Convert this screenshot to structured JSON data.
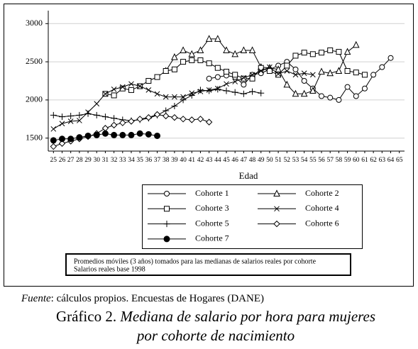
{
  "chart_data": {
    "type": "line",
    "x_label": "Edad",
    "xlim": [
      24.4,
      65.6
    ],
    "xticks": [
      25,
      26,
      27,
      28,
      29,
      30,
      31,
      32,
      33,
      34,
      35,
      36,
      37,
      38,
      39,
      40,
      41,
      42,
      43,
      44,
      45,
      46,
      47,
      48,
      49,
      50,
      51,
      52,
      53,
      54,
      55,
      56,
      57,
      58,
      59,
      60,
      61,
      62,
      63,
      64,
      65
    ],
    "ylim": [
      1330,
      3170
    ],
    "yticks": [
      1500,
      2000,
      2500,
      3000
    ],
    "grid": true,
    "series": [
      {
        "name": "Cohorte 1",
        "color": "#000000",
        "marker": "circle",
        "x": [
          43,
          44,
          45,
          46,
          47,
          48,
          49,
          50,
          51,
          52,
          53,
          54,
          55,
          56,
          57,
          58,
          59,
          60,
          61,
          62,
          63,
          64
        ],
        "values": [
          2280,
          2300,
          2320,
          2300,
          2200,
          2330,
          2350,
          2400,
          2450,
          2500,
          2400,
          2250,
          2150,
          2050,
          2030,
          2000,
          2170,
          2050,
          2150,
          2330,
          2430,
          2550
        ]
      },
      {
        "name": "Cohorte 2",
        "color": "#000000",
        "marker": "triangle",
        "x": [
          38,
          39,
          40,
          41,
          42,
          43,
          44,
          45,
          46,
          47,
          48,
          49,
          50,
          51,
          52,
          53,
          54,
          55,
          56,
          57,
          58,
          59,
          60
        ],
        "values": [
          2380,
          2560,
          2650,
          2600,
          2650,
          2800,
          2800,
          2650,
          2600,
          2650,
          2650,
          2430,
          2420,
          2400,
          2200,
          2080,
          2080,
          2120,
          2370,
          2350,
          2380,
          2630,
          2720
        ]
      },
      {
        "name": "Cohorte 3",
        "color": "#000000",
        "marker": "square",
        "x": [
          31,
          32,
          33,
          34,
          35,
          36,
          37,
          38,
          39,
          40,
          41,
          42,
          43,
          44,
          45,
          46,
          47,
          48,
          49,
          50,
          51,
          52,
          53,
          54,
          55,
          56,
          57,
          58,
          59,
          60,
          61
        ],
        "values": [
          2080,
          2060,
          2150,
          2130,
          2180,
          2250,
          2300,
          2380,
          2400,
          2500,
          2520,
          2520,
          2480,
          2420,
          2370,
          2330,
          2280,
          2280,
          2420,
          2380,
          2330,
          2450,
          2580,
          2620,
          2600,
          2620,
          2650,
          2630,
          2380,
          2360,
          2330
        ]
      },
      {
        "name": "Cohorte 4",
        "color": "#000000",
        "marker": "x",
        "x": [
          25,
          26,
          27,
          28,
          29,
          30,
          31,
          32,
          33,
          34,
          35,
          36,
          37,
          38,
          39,
          40,
          41,
          42,
          43,
          44,
          45,
          46,
          47,
          48,
          49,
          50,
          51,
          52,
          53,
          54,
          55
        ],
        "values": [
          1620,
          1690,
          1720,
          1730,
          1840,
          1950,
          2080,
          2140,
          2170,
          2210,
          2180,
          2130,
          2080,
          2040,
          2040,
          2040,
          2090,
          2110,
          2130,
          2150,
          2210,
          2240,
          2290,
          2330,
          2380,
          2430,
          2340,
          2380,
          2330,
          2350,
          2330
        ]
      },
      {
        "name": "Cohorte 5",
        "color": "#000000",
        "marker": "plus",
        "x": [
          25,
          26,
          27,
          28,
          29,
          30,
          31,
          32,
          33,
          34,
          35,
          36,
          37,
          38,
          39,
          40,
          41,
          42,
          43,
          44,
          45,
          46,
          47,
          48,
          49
        ],
        "values": [
          1800,
          1780,
          1790,
          1800,
          1820,
          1800,
          1780,
          1760,
          1740,
          1730,
          1740,
          1760,
          1800,
          1860,
          1920,
          2000,
          2060,
          2130,
          2120,
          2140,
          2120,
          2100,
          2080,
          2110,
          2090
        ]
      },
      {
        "name": "Cohorte 6",
        "color": "#000000",
        "marker": "diamond",
        "x": [
          25,
          26,
          27,
          28,
          29,
          30,
          31,
          32,
          33,
          34,
          35,
          36,
          37,
          38,
          39,
          40,
          41,
          42,
          43
        ],
        "values": [
          1390,
          1430,
          1460,
          1490,
          1520,
          1560,
          1630,
          1670,
          1700,
          1720,
          1750,
          1770,
          1810,
          1790,
          1770,
          1750,
          1740,
          1750,
          1710
        ]
      },
      {
        "name": "Cohorte 7",
        "color": "#000000",
        "marker": "filled-circle",
        "x": [
          25,
          26,
          27,
          28,
          29,
          30,
          31,
          32,
          33,
          34,
          35,
          36,
          37
        ],
        "values": [
          1470,
          1490,
          1490,
          1510,
          1530,
          1540,
          1560,
          1540,
          1540,
          1540,
          1560,
          1550,
          1530
        ]
      }
    ],
    "note": [
      "Promedios móviles (3 años) tomados para las medianas de salarios reales por cohorte",
      "Salarios reales base 1998"
    ],
    "source_label": "Fuente",
    "source_text": ": cálculos propios. Encuestas de Hogares (DANE)",
    "caption_number": "Gráfico 2.",
    "caption_title": [
      "Mediana de salario por hora para mujeres",
      "por cohorte de nacimiento"
    ]
  }
}
